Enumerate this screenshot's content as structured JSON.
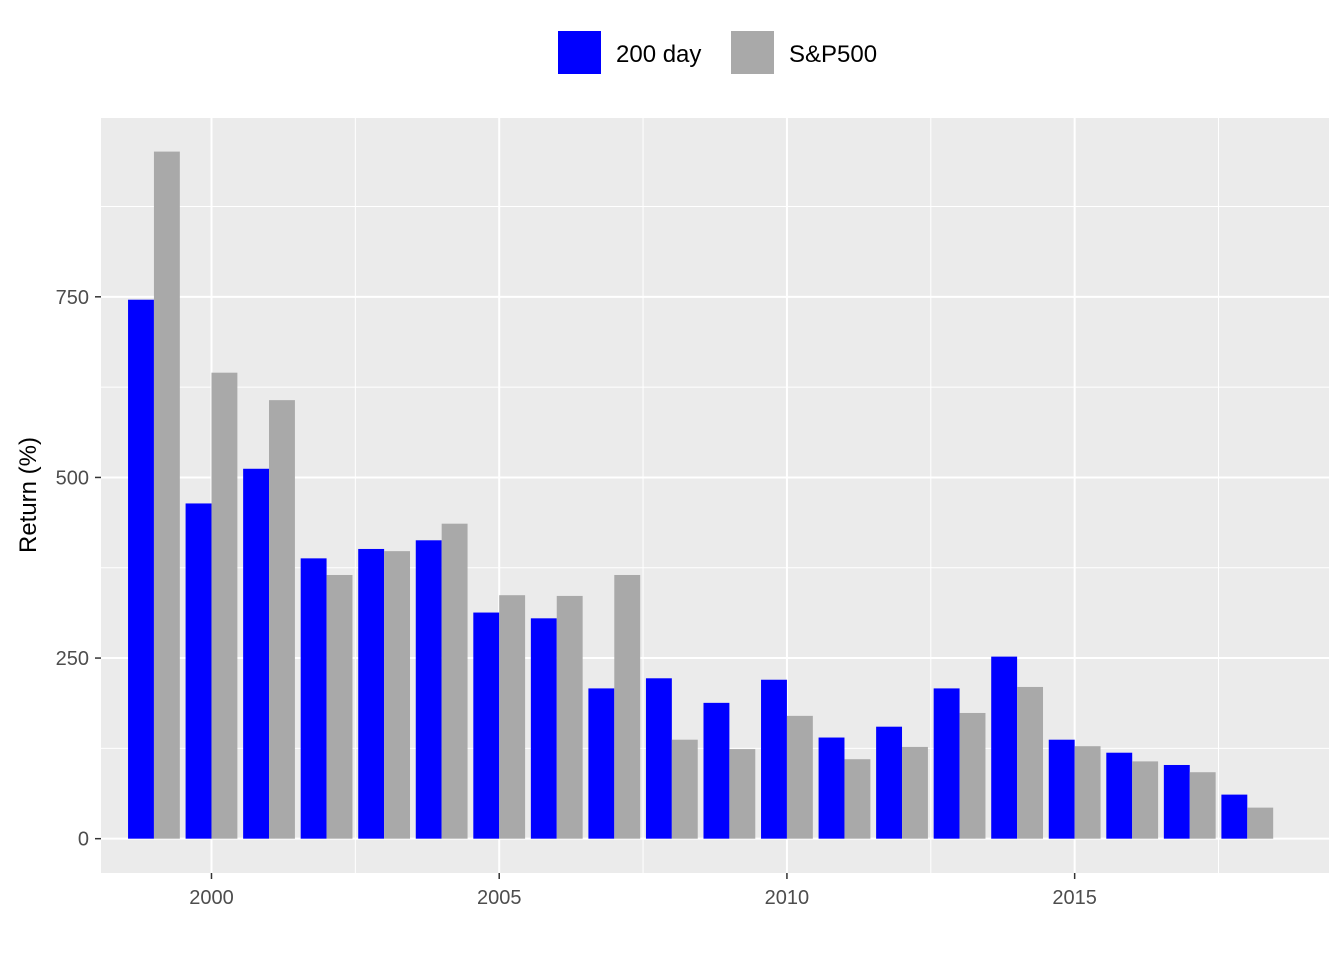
{
  "chart_data": {
    "type": "bar",
    "ylabel": "Return (%)",
    "xlabel": "",
    "x": [
      1999,
      2000,
      2001,
      2002,
      2003,
      2004,
      2005,
      2006,
      2007,
      2008,
      2009,
      2010,
      2011,
      2012,
      2013,
      2014,
      2015,
      2016,
      2017,
      2018
    ],
    "series": [
      {
        "name": "200 day",
        "color": "#0000ff",
        "values": [
          746,
          464,
          512,
          388,
          401,
          413,
          313,
          305,
          208,
          222,
          188,
          220,
          140,
          155,
          208,
          252,
          137,
          119,
          102,
          61
        ]
      },
      {
        "name": "S&P500",
        "color": "#a9a9a9",
        "values": [
          951,
          645,
          607,
          365,
          398,
          436,
          337,
          336,
          365,
          137,
          124,
          170,
          110,
          127,
          174,
          210,
          128,
          107,
          92,
          43
        ]
      }
    ],
    "xticks": [
      2000,
      2005,
      2010,
      2015
    ],
    "xtick_labels": [
      "2000",
      "2005",
      "2010",
      "2015"
    ],
    "yticks": [
      0,
      250,
      500,
      750
    ],
    "ytick_labels": [
      "0",
      "250",
      "500",
      "750"
    ],
    "xlim": [
      1998.08,
      2019.42
    ],
    "ylim": [
      -47.5,
      997.5
    ],
    "grid": true,
    "panel_background": "#ebebeb",
    "legend_position": "top"
  }
}
